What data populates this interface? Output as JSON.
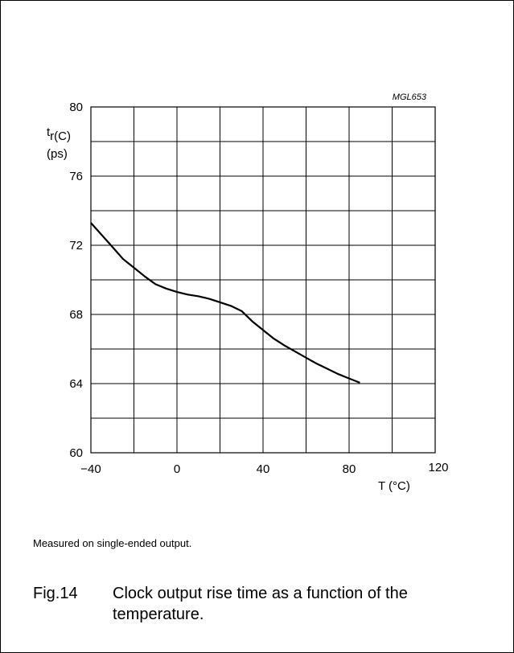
{
  "chart_data": {
    "type": "line",
    "code": "MGL653",
    "ylabel_main": "t",
    "ylabel_sub": "r(C)",
    "ylabel_unit": "(ps)",
    "xlabel": "T (°C)",
    "xlim": [
      -40,
      120
    ],
    "ylim": [
      60,
      80
    ],
    "x_ticks": [
      "−40",
      "0",
      "40",
      "80",
      "120"
    ],
    "y_ticks": [
      "60",
      "64",
      "68",
      "72",
      "76",
      "80"
    ],
    "grid": true,
    "series": [
      {
        "x": [
          -40,
          -35,
          -30,
          -25,
          -20,
          -15,
          -10,
          -5,
          0,
          5,
          10,
          15,
          20,
          25,
          30,
          35,
          40,
          45,
          50,
          55,
          60,
          65,
          70,
          75,
          80,
          85
        ],
        "y": [
          73.3,
          72.6,
          71.9,
          71.2,
          70.7,
          70.2,
          69.75,
          69.5,
          69.3,
          69.15,
          69.05,
          68.9,
          68.7,
          68.5,
          68.2,
          67.6,
          67.1,
          66.6,
          66.2,
          65.85,
          65.5,
          65.15,
          64.85,
          64.55,
          64.3,
          64.05
        ],
        "color": "#000000"
      }
    ]
  },
  "note": "Measured on single-ended output.",
  "caption": {
    "fig": "Fig.14",
    "line1": "Clock output rise time as a function of the",
    "line2": "temperature."
  }
}
